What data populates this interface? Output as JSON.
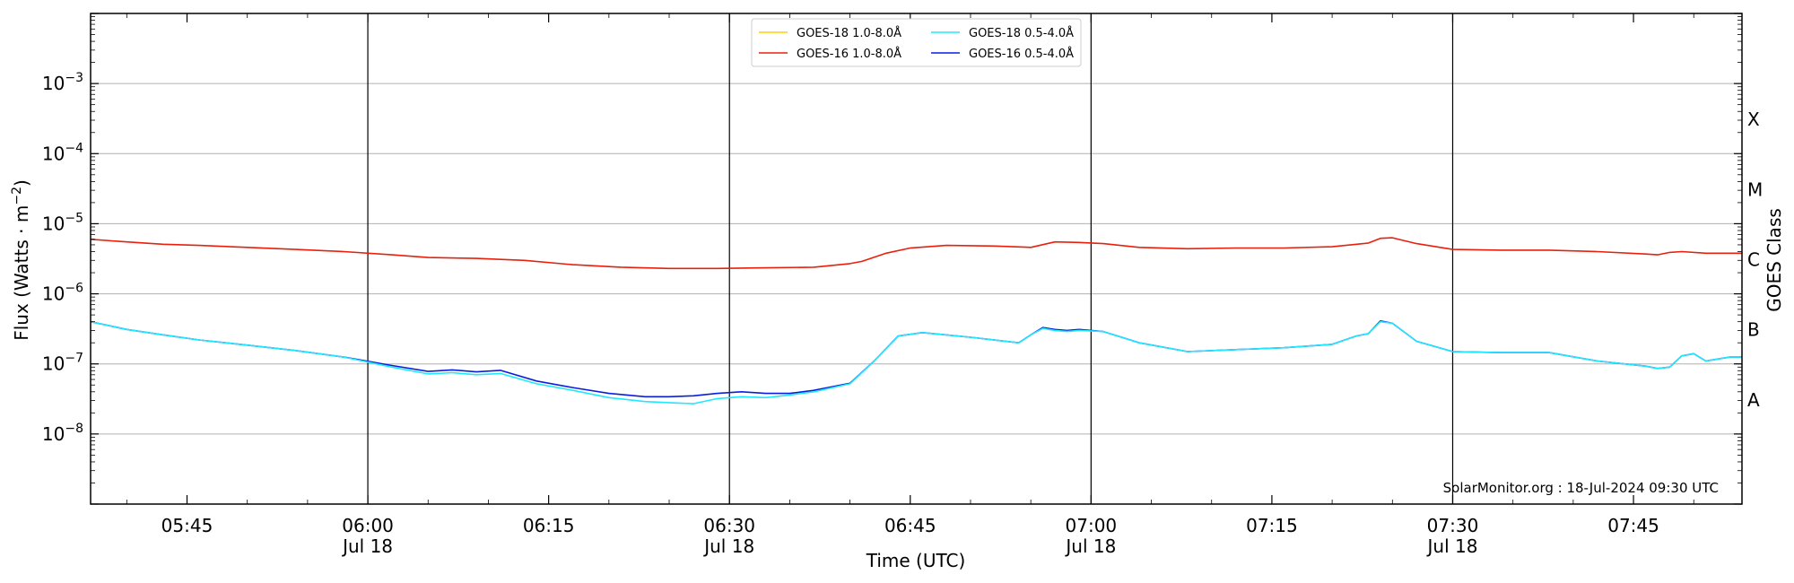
{
  "chart_data": {
    "type": "line",
    "title": "",
    "xlabel": "Time (UTC)",
    "ylabel_main": "Flux (Watts · m",
    "ylabel_exp": "−2",
    "ylabel_close": ")",
    "y2label": "GOES Class",
    "yscale": "log",
    "xlim": [
      "05:37",
      "07:54"
    ],
    "ylim": [
      1e-09,
      0.01
    ],
    "grid": "horizontal",
    "legend_position": "top-center",
    "credit": "SolarMonitor.org : 18-Jul-2024 09:30 UTC",
    "x_ticks": [
      {
        "time": "05:45",
        "label": "05:45",
        "date": ""
      },
      {
        "time": "06:00",
        "label": "06:00",
        "date": "Jul 18"
      },
      {
        "time": "06:15",
        "label": "06:15",
        "date": ""
      },
      {
        "time": "06:30",
        "label": "06:30",
        "date": "Jul 18"
      },
      {
        "time": "06:45",
        "label": "06:45",
        "date": ""
      },
      {
        "time": "07:00",
        "label": "07:00",
        "date": "Jul 18"
      },
      {
        "time": "07:15",
        "label": "07:15",
        "date": ""
      },
      {
        "time": "07:30",
        "label": "07:30",
        "date": "Jul 18"
      },
      {
        "time": "07:45",
        "label": "07:45",
        "date": ""
      }
    ],
    "day_boundaries": [
      "06:00",
      "06:30",
      "07:00",
      "07:30"
    ],
    "y_ticks": [
      {
        "exp": -8,
        "label": "10",
        "sup": "−8"
      },
      {
        "exp": -7,
        "label": "10",
        "sup": "−7"
      },
      {
        "exp": -6,
        "label": "10",
        "sup": "−6"
      },
      {
        "exp": -5,
        "label": "10",
        "sup": "−5"
      },
      {
        "exp": -4,
        "label": "10",
        "sup": "−4"
      },
      {
        "exp": -3,
        "label": "10",
        "sup": "−3"
      }
    ],
    "goes_classes": [
      {
        "label": "A",
        "log_flux": -7.5
      },
      {
        "label": "B",
        "log_flux": -6.5
      },
      {
        "label": "C",
        "log_flux": -5.5
      },
      {
        "label": "M",
        "log_flux": -4.5
      },
      {
        "label": "X",
        "log_flux": -3.5
      }
    ],
    "series": [
      {
        "name": "GOES-18 1.0-8.0Å",
        "color": "#ffd000",
        "legend_order": 0,
        "x": [],
        "y": []
      },
      {
        "name": "GOES-16 1.0-8.0Å",
        "color": "#e8200c",
        "legend_order": 1,
        "x": [
          "05:37",
          "05:40",
          "05:43",
          "05:46",
          "05:50",
          "05:54",
          "05:58",
          "06:02",
          "06:05",
          "06:09",
          "06:13",
          "06:17",
          "06:21",
          "06:25",
          "06:29",
          "06:33",
          "06:37",
          "06:40",
          "06:41",
          "06:43",
          "06:45",
          "06:48",
          "06:52",
          "06:55",
          "06:57",
          "06:59",
          "07:01",
          "07:04",
          "07:08",
          "07:12",
          "07:16",
          "07:20",
          "07:23",
          "07:24",
          "07:25",
          "07:27",
          "07:30",
          "07:34",
          "07:38",
          "07:42",
          "07:46",
          "07:47",
          "07:48",
          "07:49",
          "07:51",
          "07:54"
        ],
        "y": [
          6e-06,
          5.5e-06,
          5.1e-06,
          4.9e-06,
          4.6e-06,
          4.3e-06,
          4e-06,
          3.6e-06,
          3.3e-06,
          3.2e-06,
          3e-06,
          2.6e-06,
          2.4e-06,
          2.3e-06,
          2.3e-06,
          2.35e-06,
          2.4e-06,
          2.7e-06,
          2.9e-06,
          3.8e-06,
          4.5e-06,
          4.9e-06,
          4.8e-06,
          4.6e-06,
          5.5e-06,
          5.4e-06,
          5.2e-06,
          4.6e-06,
          4.4e-06,
          4.5e-06,
          4.5e-06,
          4.7e-06,
          5.3e-06,
          6.2e-06,
          6.3e-06,
          5.2e-06,
          4.3e-06,
          4.2e-06,
          4.2e-06,
          4e-06,
          3.7e-06,
          3.6e-06,
          3.9e-06,
          4e-06,
          3.8e-06,
          3.8e-06
        ]
      },
      {
        "name": "GOES-18 0.5-4.0Å",
        "color": "#20e8ff",
        "legend_order": 2,
        "x": [
          "05:37",
          "05:40",
          "05:43",
          "05:46",
          "05:50",
          "05:54",
          "05:58",
          "06:02",
          "06:05",
          "06:07",
          "06:09",
          "06:11",
          "06:14",
          "06:17",
          "06:20",
          "06:23",
          "06:25",
          "06:27",
          "06:29",
          "06:31",
          "06:33",
          "06:35",
          "06:37",
          "06:40",
          "06:42",
          "06:44",
          "06:46",
          "06:50",
          "06:54",
          "06:55",
          "06:56",
          "06:57",
          "06:58",
          "06:59",
          "07:01",
          "07:04",
          "07:08",
          "07:12",
          "07:16",
          "07:20",
          "07:22",
          "07:23",
          "07:24",
          "07:25",
          "07:27",
          "07:30",
          "07:34",
          "07:38",
          "07:42",
          "07:46",
          "07:47",
          "07:48",
          "07:49",
          "07:50",
          "07:51",
          "07:53",
          "07:54"
        ],
        "y": [
          4e-07,
          3.1e-07,
          2.6e-07,
          2.2e-07,
          1.85e-07,
          1.55e-07,
          1.25e-07,
          9e-08,
          7.2e-08,
          7.5e-08,
          7e-08,
          7.3e-08,
          5.2e-08,
          4.2e-08,
          3.3e-08,
          2.9e-08,
          2.8e-08,
          2.7e-08,
          3.2e-08,
          3.4e-08,
          3.3e-08,
          3.6e-08,
          4e-08,
          5.2e-08,
          1.1e-07,
          2.5e-07,
          2.8e-07,
          2.4e-07,
          2e-07,
          2.6e-07,
          3.2e-07,
          3e-07,
          2.9e-07,
          3e-07,
          2.9e-07,
          2e-07,
          1.5e-07,
          1.6e-07,
          1.7e-07,
          1.9e-07,
          2.5e-07,
          2.7e-07,
          4e-07,
          3.8e-07,
          2.1e-07,
          1.5e-07,
          1.45e-07,
          1.45e-07,
          1.1e-07,
          9.3e-08,
          8.6e-08,
          9e-08,
          1.3e-07,
          1.4e-07,
          1.1e-07,
          1.25e-07,
          1.25e-07
        ]
      },
      {
        "name": "GOES-16 0.5-4.0Å",
        "color": "#0a1ee0",
        "legend_order": 3,
        "x": [
          "05:37",
          "05:40",
          "05:43",
          "05:46",
          "05:50",
          "05:54",
          "05:58",
          "06:02",
          "06:05",
          "06:07",
          "06:09",
          "06:11",
          "06:14",
          "06:17",
          "06:20",
          "06:23",
          "06:25",
          "06:27",
          "06:29",
          "06:31",
          "06:33",
          "06:35",
          "06:37",
          "06:40",
          "06:42",
          "06:44",
          "06:46",
          "06:50",
          "06:54",
          "06:55",
          "06:56",
          "06:57",
          "06:58",
          "06:59",
          "07:01",
          "07:04",
          "07:08",
          "07:12",
          "07:16",
          "07:20",
          "07:22",
          "07:23",
          "07:24",
          "07:25",
          "07:27",
          "07:30",
          "07:34",
          "07:38",
          "07:42",
          "07:46",
          "07:47",
          "07:48",
          "07:49",
          "07:50",
          "07:51",
          "07:53",
          "07:54"
        ],
        "y": [
          4e-07,
          3.1e-07,
          2.6e-07,
          2.2e-07,
          1.85e-07,
          1.55e-07,
          1.25e-07,
          9.5e-08,
          7.8e-08,
          8.2e-08,
          7.7e-08,
          8.1e-08,
          5.7e-08,
          4.6e-08,
          3.8e-08,
          3.4e-08,
          3.4e-08,
          3.5e-08,
          3.8e-08,
          4e-08,
          3.8e-08,
          3.8e-08,
          4.2e-08,
          5.3e-08,
          1.1e-07,
          2.5e-07,
          2.8e-07,
          2.4e-07,
          2e-07,
          2.6e-07,
          3.3e-07,
          3.1e-07,
          3e-07,
          3.1e-07,
          2.9e-07,
          2e-07,
          1.5e-07,
          1.6e-07,
          1.7e-07,
          1.9e-07,
          2.5e-07,
          2.7e-07,
          4.1e-07,
          3.8e-07,
          2.1e-07,
          1.5e-07,
          1.45e-07,
          1.45e-07,
          1.1e-07,
          9.3e-08,
          8.6e-08,
          9e-08,
          1.3e-07,
          1.4e-07,
          1.1e-07,
          1.25e-07,
          1.25e-07
        ]
      }
    ]
  }
}
